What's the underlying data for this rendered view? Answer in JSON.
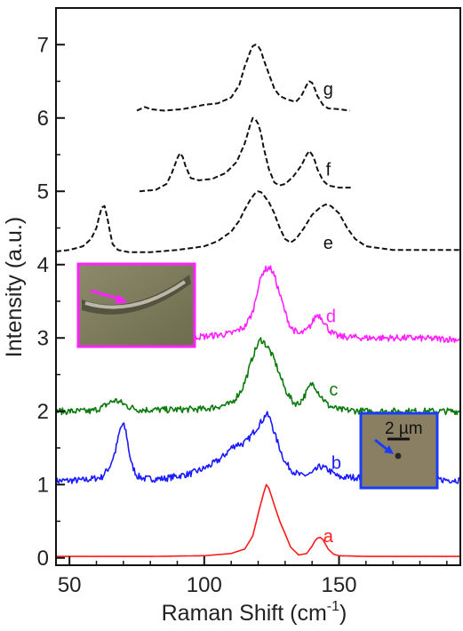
{
  "chart_data": {
    "type": "line",
    "xlabel": "Raman Shift (cm",
    "xlabel_sup": "-1",
    "xlabel_close": ")",
    "ylabel": "Intensity (a.u.)",
    "xlim": [
      45,
      195
    ],
    "ylim": [
      -0.1,
      7.5
    ],
    "xticks": [
      50,
      100,
      150
    ],
    "yticks": [
      0,
      1,
      2,
      3,
      4,
      5,
      6,
      7
    ],
    "grid": false,
    "series": [
      {
        "name": "a",
        "color": "#ff1a1a",
        "style": "solid",
        "noisy": false,
        "x": [
          45,
          60,
          80,
          100,
          110,
          115,
          118,
          120,
          122,
          123,
          124,
          126,
          128,
          130,
          132,
          135,
          138,
          140,
          141,
          142,
          143,
          144,
          146,
          148,
          150,
          160,
          175,
          195
        ],
        "y": [
          0.02,
          0.02,
          0.02,
          0.03,
          0.06,
          0.12,
          0.3,
          0.6,
          0.88,
          1.0,
          0.95,
          0.72,
          0.5,
          0.33,
          0.15,
          0.04,
          0.06,
          0.16,
          0.23,
          0.27,
          0.28,
          0.25,
          0.12,
          0.05,
          0.03,
          0.02,
          0.02,
          0.02
        ]
      },
      {
        "name": "b",
        "color": "#1a1aff",
        "style": "solid",
        "noisy": true,
        "x": [
          45,
          55,
          62,
          65,
          67,
          68,
          69,
          70,
          71,
          72,
          73,
          75,
          78,
          85,
          95,
          100,
          103,
          106,
          108,
          110,
          112,
          114,
          116,
          118,
          120,
          122,
          123,
          124,
          125,
          126,
          128,
          130,
          133,
          136,
          140,
          143,
          146,
          150,
          155,
          170,
          185,
          195
        ],
        "y": [
          1.05,
          1.06,
          1.1,
          1.25,
          1.45,
          1.62,
          1.78,
          1.82,
          1.72,
          1.48,
          1.28,
          1.12,
          1.08,
          1.08,
          1.15,
          1.22,
          1.28,
          1.35,
          1.42,
          1.5,
          1.55,
          1.55,
          1.6,
          1.7,
          1.8,
          1.9,
          1.97,
          1.92,
          1.85,
          1.7,
          1.5,
          1.3,
          1.18,
          1.12,
          1.15,
          1.25,
          1.2,
          1.1,
          1.1,
          1.08,
          1.07,
          1.06
        ]
      },
      {
        "name": "c",
        "color": "#0b7a0b",
        "style": "solid",
        "noisy": true,
        "x": [
          45,
          58,
          62,
          65,
          67,
          69,
          72,
          76,
          85,
          100,
          110,
          114,
          116,
          118,
          120,
          121,
          122,
          124,
          126,
          128,
          130,
          133,
          135,
          137,
          139,
          140,
          141,
          143,
          146,
          150,
          160,
          175,
          195
        ],
        "y": [
          2.0,
          2.0,
          2.05,
          2.12,
          2.15,
          2.12,
          2.06,
          2.02,
          2.02,
          2.03,
          2.1,
          2.3,
          2.5,
          2.75,
          2.92,
          2.98,
          2.95,
          2.85,
          2.7,
          2.5,
          2.3,
          2.12,
          2.1,
          2.2,
          2.33,
          2.38,
          2.35,
          2.22,
          2.08,
          2.02,
          2.0,
          2.0,
          2.0
        ]
      },
      {
        "name": "d",
        "color": "#ff22ff",
        "style": "solid",
        "noisy": true,
        "x": [
          63,
          80,
          100,
          110,
          115,
          118,
          120,
          122,
          124,
          125,
          126,
          128,
          130,
          132,
          135,
          138,
          140,
          141,
          142,
          143,
          144,
          146,
          148,
          150,
          160,
          175,
          195
        ],
        "y": [
          3.0,
          3.0,
          3.02,
          3.06,
          3.15,
          3.35,
          3.7,
          3.92,
          3.96,
          3.93,
          3.85,
          3.6,
          3.35,
          3.15,
          3.05,
          3.1,
          3.2,
          3.28,
          3.32,
          3.3,
          3.25,
          3.12,
          3.05,
          3.02,
          3.0,
          3.0,
          2.98
        ]
      },
      {
        "name": "e",
        "color": "#111111",
        "style": "dashed",
        "noisy": false,
        "x": [
          45,
          50,
          55,
          58,
          60,
          61,
          62,
          63,
          64,
          65,
          66,
          68,
          72,
          80,
          90,
          100,
          105,
          110,
          113,
          115,
          117,
          119,
          120,
          121,
          122,
          124,
          126,
          128,
          130,
          132,
          134,
          137,
          140,
          143,
          145,
          147,
          150,
          153,
          156,
          160,
          170,
          180,
          190,
          195
        ],
        "y": [
          4.18,
          4.2,
          4.25,
          4.35,
          4.5,
          4.65,
          4.78,
          4.8,
          4.65,
          4.45,
          4.28,
          4.2,
          4.17,
          4.17,
          4.2,
          4.25,
          4.32,
          4.45,
          4.6,
          4.75,
          4.88,
          4.98,
          5.0,
          4.99,
          4.95,
          4.85,
          4.7,
          4.5,
          4.35,
          4.3,
          4.35,
          4.5,
          4.68,
          4.78,
          4.82,
          4.8,
          4.7,
          4.5,
          4.35,
          4.25,
          4.2,
          4.2,
          4.2,
          4.2
        ]
      },
      {
        "name": "f",
        "color": "#111111",
        "style": "dashed",
        "noisy": false,
        "x": [
          76,
          82,
          86,
          88,
          90,
          91,
          92,
          93,
          95,
          98,
          103,
          108,
          112,
          115,
          117,
          118,
          119,
          120,
          121,
          122,
          124,
          126,
          128,
          130,
          133,
          136,
          138,
          139,
          140,
          141,
          142,
          144,
          146,
          150,
          155
        ],
        "y": [
          5.0,
          5.02,
          5.1,
          5.25,
          5.45,
          5.52,
          5.47,
          5.35,
          5.18,
          5.15,
          5.17,
          5.25,
          5.4,
          5.65,
          5.9,
          6.0,
          5.98,
          5.92,
          5.8,
          5.6,
          5.3,
          5.12,
          5.08,
          5.1,
          5.2,
          5.35,
          5.5,
          5.55,
          5.5,
          5.42,
          5.3,
          5.15,
          5.08,
          5.05,
          5.05
        ]
      },
      {
        "name": "g",
        "color": "#111111",
        "style": "dashed",
        "noisy": false,
        "x": [
          75,
          78,
          80,
          85,
          92,
          100,
          105,
          110,
          113,
          115,
          117,
          118,
          119,
          120,
          121,
          122,
          124,
          126,
          128,
          131,
          134,
          136,
          138,
          139,
          140,
          141,
          142,
          144,
          146,
          150,
          154
        ],
        "y": [
          6.1,
          6.15,
          6.12,
          6.1,
          6.12,
          6.18,
          6.2,
          6.28,
          6.45,
          6.7,
          6.9,
          6.98,
          7.0,
          6.98,
          6.92,
          6.8,
          6.6,
          6.4,
          6.3,
          6.25,
          6.22,
          6.3,
          6.45,
          6.5,
          6.48,
          6.4,
          6.3,
          6.18,
          6.13,
          6.12,
          6.1
        ]
      }
    ],
    "curve_labels": [
      {
        "text": "a",
        "x": 146,
        "y": 0.3
      },
      {
        "text": "b",
        "x": 149,
        "y": 1.3
      },
      {
        "text": "c",
        "x": 148,
        "y": 2.3
      },
      {
        "text": "d",
        "x": 147,
        "y": 3.3
      },
      {
        "text": "e",
        "x": 146,
        "y": 4.3
      },
      {
        "text": "f",
        "x": 146,
        "y": 5.3
      },
      {
        "text": "g",
        "x": 146,
        "y": 6.4
      }
    ],
    "insets": [
      {
        "name": "nanowire-image-inset",
        "border_color": "#ff22ff",
        "arrow_color": "#ff22ff"
      },
      {
        "name": "dot-image-inset",
        "border_color": "#1a3cff",
        "arrow_color": "#1a3cff",
        "scale_bar_label": "2 µm"
      }
    ]
  }
}
